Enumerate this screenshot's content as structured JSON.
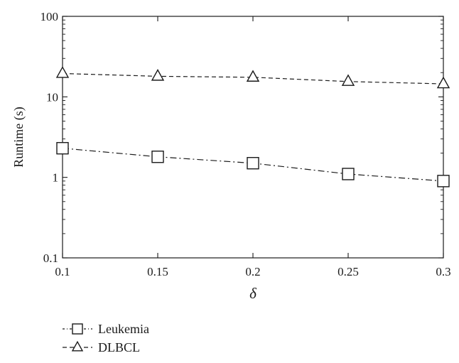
{
  "chart_data": {
    "type": "line",
    "title": "",
    "xlabel": "δ",
    "ylabel": "Runtime (s)",
    "x": [
      0.1,
      0.15,
      0.2,
      0.25,
      0.3
    ],
    "x_tick_labels": [
      "0.1",
      "0.15",
      "0.2",
      "0.25",
      "0.3"
    ],
    "xlim": [
      0.1,
      0.3
    ],
    "y_scale": "log",
    "ylim": [
      0.1,
      100
    ],
    "y_tick_labels": [
      "0.1",
      "1",
      "10",
      "100"
    ],
    "y_ticks": [
      0.1,
      1,
      10,
      100
    ],
    "grid": false,
    "legend_position": "bottom-left, below plot",
    "series": [
      {
        "name": "Leukemia",
        "values": [
          2.3,
          1.8,
          1.5,
          1.1,
          0.9
        ],
        "marker": "square",
        "line_style": "dash-dot",
        "color": "#1a1a1a"
      },
      {
        "name": "DLBCL",
        "values": [
          19.5,
          18.0,
          17.5,
          15.5,
          14.5
        ],
        "marker": "triangle",
        "line_style": "dashed",
        "color": "#1a1a1a"
      }
    ]
  }
}
